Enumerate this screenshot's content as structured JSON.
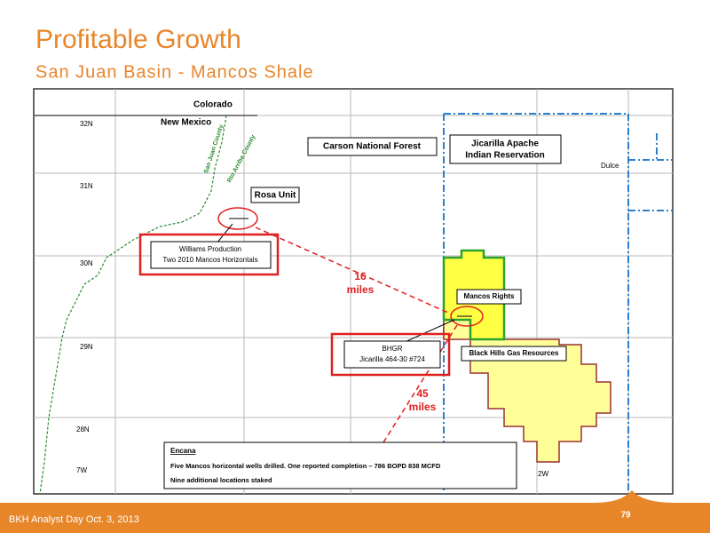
{
  "header": {
    "title": "Profitable Growth",
    "subtitle": "San Juan Basin - Mancos Shale"
  },
  "map": {
    "states": [
      "Colorado",
      "New Mexico"
    ],
    "counties": [
      "San Juan County",
      "Rio Arriba County"
    ],
    "places": {
      "forest": "Carson National Forest",
      "reservation": [
        "Jicarilla Apache",
        "Indian Reservation"
      ],
      "town": "Dulce",
      "rosa": "Rosa Unit",
      "mancos": "Mancos Rights",
      "bhgr_lands": "Black Hills Gas Resources"
    },
    "townships": [
      "32N",
      "31N",
      "30N",
      "29N",
      "28N",
      "7W",
      "2W"
    ],
    "williams": [
      "Williams Production",
      "Two 2010 Mancos Horizontals"
    ],
    "bhgr_well": [
      "BHGR",
      "Jicarilla 464-30 #724"
    ],
    "distances": [
      [
        "16",
        "miles"
      ],
      [
        "45",
        "miles"
      ]
    ],
    "encana": {
      "title": "Encana",
      "lines": [
        "Five Mancos horizontal wells drilled. One reported completion – 786 BOPD 838 MCFD",
        "Nine additional locations staked"
      ]
    }
  },
  "footer": {
    "event": "BKH Analyst Day  Oct. 3, 2013",
    "page": "79"
  }
}
